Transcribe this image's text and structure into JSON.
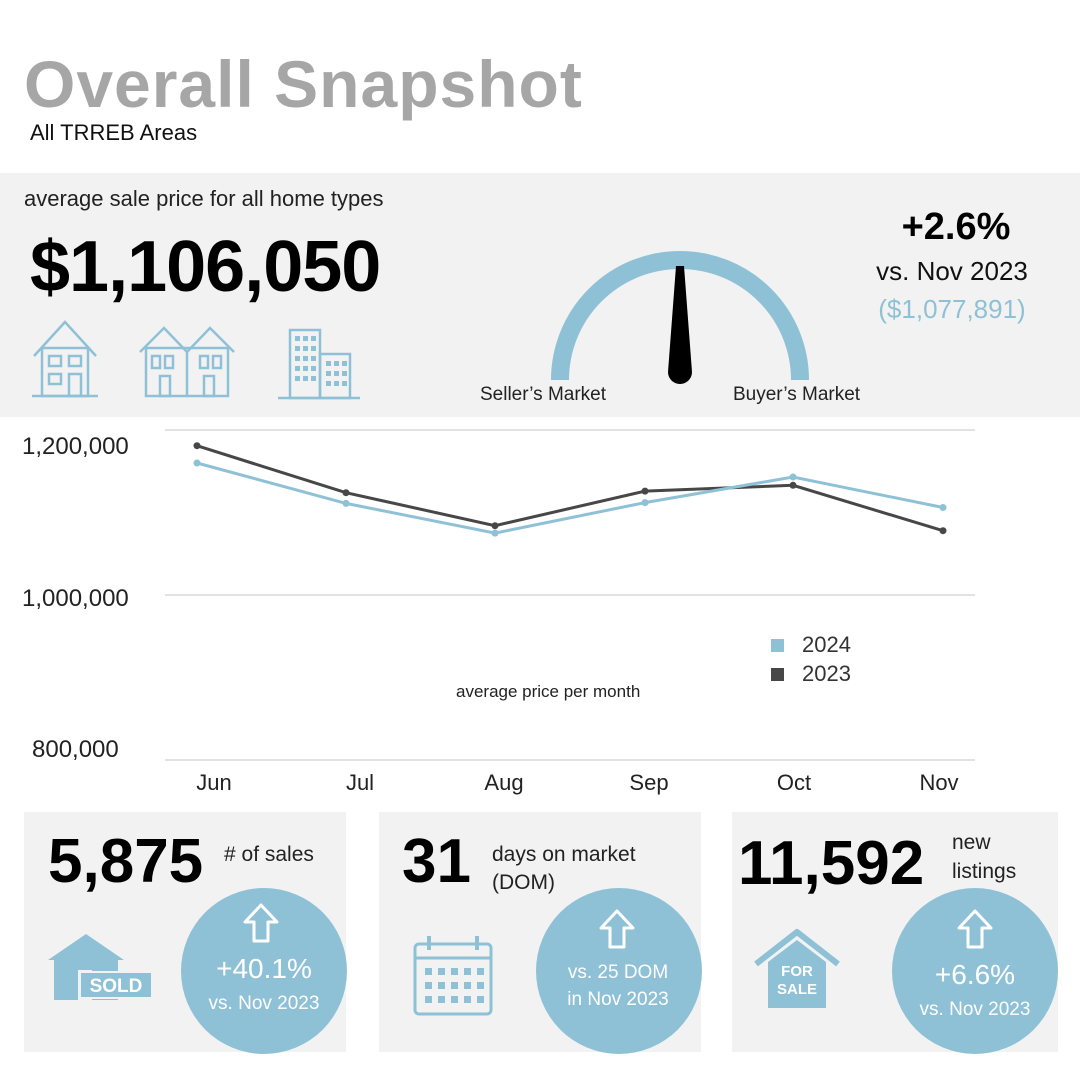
{
  "header": {
    "title": "Overall Snapshot",
    "subtitle": "All TRREB Areas"
  },
  "price": {
    "label": "average sale price for all home types",
    "value": "$1,106,050",
    "change": "+2.6%",
    "vs_label": "vs. Nov 2023",
    "previous_value": "($1,077,891)",
    "home_type_icons": [
      "detached-house-icon",
      "townhouse-icon",
      "condo-building-icon"
    ]
  },
  "gauge": {
    "left_label": "Seller’s Market",
    "right_label": "Buyer’s Market"
  },
  "colors": {
    "accent": "#8fc1d6",
    "series_2024": "#8fc1d6",
    "series_2023": "#474747",
    "panel_bg": "#f2f2f2",
    "title_gray": "#a6a6a6"
  },
  "chart_data": {
    "type": "line",
    "title": "average price per month",
    "categories": [
      "Jun",
      "Jul",
      "Aug",
      "Sep",
      "Oct",
      "Nov"
    ],
    "series": [
      {
        "name": "2024",
        "values": [
          1160000,
          1111000,
          1075000,
          1112000,
          1143000,
          1106050
        ]
      },
      {
        "name": "2023",
        "values": [
          1181000,
          1124000,
          1084000,
          1126000,
          1133000,
          1077891
        ]
      }
    ],
    "ylim": [
      800000,
      1200000
    ],
    "yticks": [
      1200000,
      1000000,
      800000
    ],
    "ytick_labels": [
      "1,200,000",
      "1,000,000",
      "800,000"
    ],
    "grid": true,
    "legend_position": "center-right"
  },
  "stats": [
    {
      "value": "5,875",
      "label": "# of sales",
      "icon": "sold-house-icon",
      "icon_text": "SOLD",
      "change_icon": "arrow-up-icon",
      "change": "+40.1%",
      "change_sub": "vs. Nov 2023"
    },
    {
      "value": "31",
      "label_line1": "days on market",
      "label_line2": "(DOM)",
      "icon": "calendar-icon",
      "change_icon": "arrow-up-icon",
      "change_line1": "vs. 25 DOM",
      "change_line2": "in Nov 2023"
    },
    {
      "value": "11,592",
      "label_line1": "new",
      "label_line2": "listings",
      "icon": "for-sale-house-icon",
      "icon_text_line1": "FOR",
      "icon_text_line2": "SALE",
      "change_icon": "arrow-up-icon",
      "change": "+6.6%",
      "change_sub": "vs. Nov 2023"
    }
  ]
}
